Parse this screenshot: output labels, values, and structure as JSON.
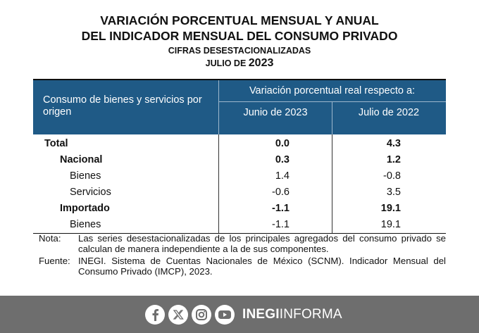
{
  "title": {
    "line1": "VARIACIÓN PORCENTUAL MENSUAL Y ANUAL",
    "line2": "DEL INDICADOR MENSUAL DEL CONSUMO PRIVADO",
    "line3": "CIFRAS DESESTACIONALIZADAS",
    "line4_prefix": "JULIO DE ",
    "line4_year": "2023"
  },
  "table": {
    "header_origin": "Consumo de bienes y servicios por origen",
    "header_variation": "Variación porcentual real respecto a:",
    "col1": "Junio de 2023",
    "col2": "Julio de 2022",
    "rows": [
      {
        "label": "Total",
        "v1": "0.0",
        "v2": "4.3"
      },
      {
        "label": "Nacional",
        "v1": "0.3",
        "v2": "1.2"
      },
      {
        "label": "Bienes",
        "v1": "1.4",
        "v2": "-0.8"
      },
      {
        "label": "Servicios",
        "v1": "-0.6",
        "v2": "3.5"
      },
      {
        "label": "Importado",
        "v1": "-1.1",
        "v2": "19.1"
      },
      {
        "label": "Bienes",
        "v1": "-1.1",
        "v2": "19.1"
      }
    ]
  },
  "notes": {
    "nota_tag": "Nota:",
    "nota_text": "Las series desestacionalizadas de los principales agregados del consumo privado se calculan de manera independiente a la de sus componentes.",
    "fuente_tag": "Fuente:",
    "fuente_text": "INEGI. Sistema de Cuentas Nacionales de México (SCNM). Indicador Mensual del Consumo Privado (IMCP), 2023."
  },
  "footer": {
    "brand_bold": "INEGI",
    "brand_rest": "INFORMA",
    "icons": [
      "facebook-icon",
      "x-icon",
      "instagram-icon",
      "youtube-icon"
    ]
  }
}
